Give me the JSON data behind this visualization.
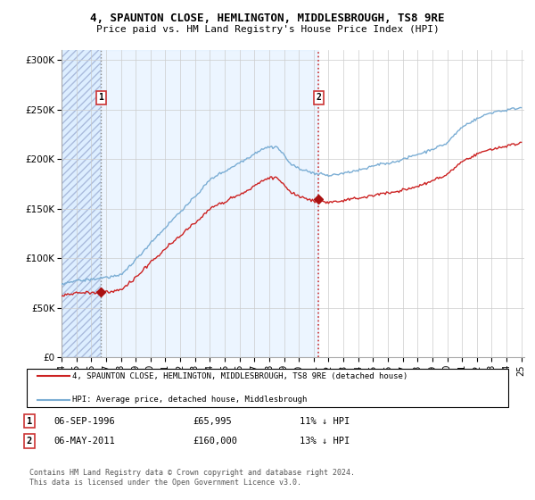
{
  "title1": "4, SPAUNTON CLOSE, HEMLINGTON, MIDDLESBROUGH, TS8 9RE",
  "title2": "Price paid vs. HM Land Registry's House Price Index (HPI)",
  "ylabel_ticks": [
    "£0",
    "£50K",
    "£100K",
    "£150K",
    "£200K",
    "£250K",
    "£300K"
  ],
  "ytick_vals": [
    0,
    50000,
    100000,
    150000,
    200000,
    250000,
    300000
  ],
  "ylim": [
    0,
    310000
  ],
  "sale1_date": "06-SEP-1996",
  "sale1_price": 65995,
  "sale1_label": "£65,995",
  "sale1_pct": "11% ↓ HPI",
  "sale2_date": "06-MAY-2011",
  "sale2_price": 160000,
  "sale2_label": "£160,000",
  "sale2_pct": "13% ↓ HPI",
  "legend1": "4, SPAUNTON CLOSE, HEMLINGTON, MIDDLESBROUGH, TS8 9RE (detached house)",
  "legend2": "HPI: Average price, detached house, Middlesbrough",
  "footer": "Contains HM Land Registry data © Crown copyright and database right 2024.\nThis data is licensed under the Open Government Licence v3.0.",
  "sale1_x": 1996.67,
  "sale2_x": 2011.34,
  "hpi_color": "#7aadd4",
  "price_color": "#cc2222",
  "dot_color": "#aa1111",
  "vline1_color": "#888888",
  "vline2_color": "#cc3333",
  "bg_hatch_color": "#cce0f0",
  "bg_shaded_color": "#ddeeff",
  "annotation_box_color": "#cc3333"
}
